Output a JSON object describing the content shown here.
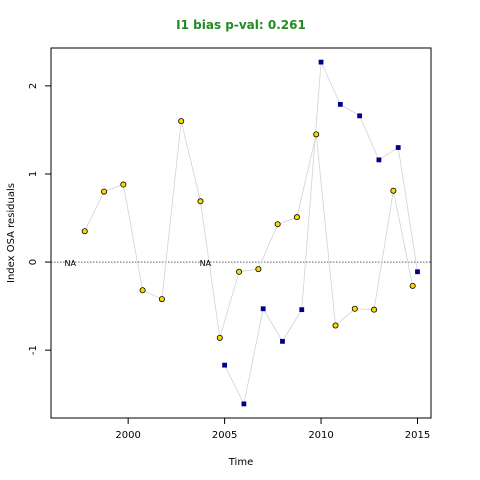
{
  "chart_data": {
    "type": "scatter",
    "title": "I1 bias p-val: 0.261",
    "title_color": "#228B22",
    "xlabel": "Time",
    "ylabel": "Index OSA residuals",
    "xlim": [
      1996,
      2015.7
    ],
    "ylim": [
      -1.77,
      2.43
    ],
    "x_ticks": [
      2000,
      2005,
      2010,
      2015
    ],
    "y_ticks": [
      -1,
      0,
      1,
      2
    ],
    "reference_line_y": 0,
    "na_labels": [
      {
        "x": 1997,
        "y": 0,
        "text": "NA"
      },
      {
        "x": 2004,
        "y": 0,
        "text": "NA"
      }
    ],
    "grid": false,
    "legend": "none",
    "series": [
      {
        "marker": "circle",
        "color": "#FFD700",
        "edge": "#000000",
        "x": [
          1997.75,
          1998.75,
          1999.75,
          2000.75,
          2001.75,
          2002.75,
          2003.75,
          2004.75,
          2005.75,
          2006.75,
          2007.75,
          2008.75,
          2009.75,
          2010.75,
          2011.75,
          2012.75,
          2013.75,
          2014.75
        ],
        "y": [
          0.35,
          0.8,
          0.88,
          -0.32,
          -0.42,
          1.6,
          0.69,
          -0.86,
          -0.11,
          -0.08,
          0.43,
          0.51,
          1.45,
          -0.72,
          -0.53,
          -0.54,
          0.81,
          -0.27
        ]
      },
      {
        "marker": "square",
        "color": "#00008B",
        "x": [
          2005,
          2006,
          2007,
          2008,
          2009,
          2010,
          2011,
          2012,
          2013,
          2014,
          2015
        ],
        "y": [
          -1.17,
          -1.61,
          -0.53,
          -0.9,
          -0.54,
          2.27,
          1.79,
          1.66,
          1.16,
          1.3,
          -0.11
        ]
      }
    ],
    "line_color": "#D3D3D3"
  }
}
